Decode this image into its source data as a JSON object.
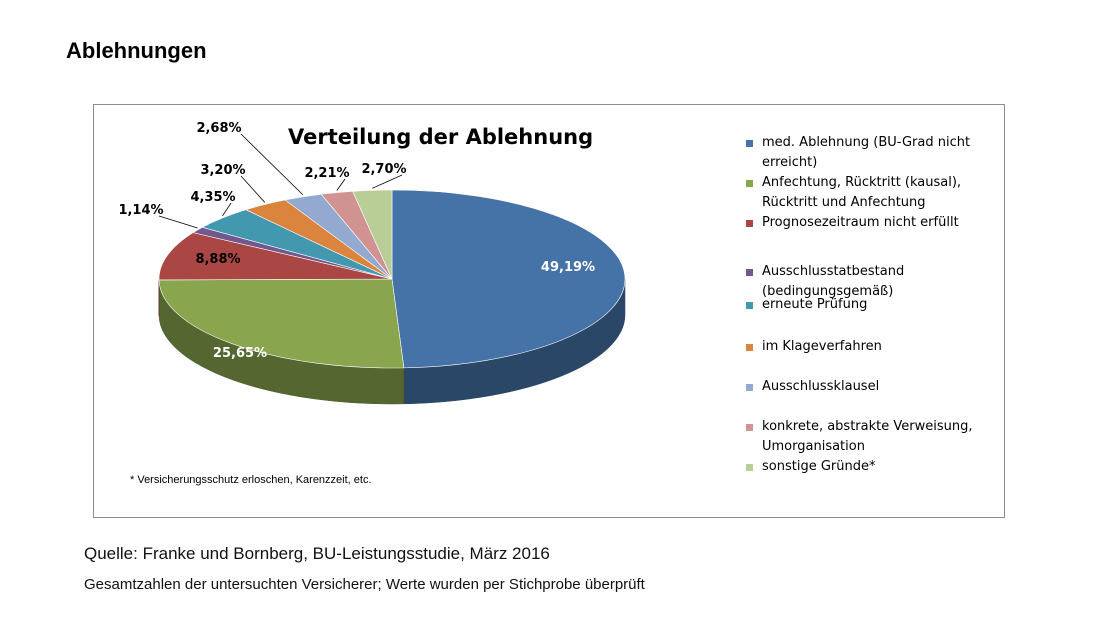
{
  "page": {
    "heading": "Ablehnungen",
    "source": "Quelle: Franke und Bornberg, BU-Leistungsstudie, März 2016",
    "note": "Gesamtzahlen der untersuchten Versicherer; Werte wurden per Stichprobe überprüft"
  },
  "chart_data": {
    "type": "pie",
    "title": "Verteilung der Ablehnung",
    "footnote": "* Versicherungsschutz erloschen, Karenzzeit, etc.",
    "legend_position": "right",
    "three_d": true,
    "slices": [
      {
        "name": "med. Ablehnung (BU-Grad nicht erreicht)",
        "value": 49.19,
        "label": "49,19%",
        "color": "#4572A7"
      },
      {
        "name": "Anfechtung, Rücktritt (kausal), Rücktritt und Anfechtung",
        "value": 25.65,
        "label": "25,65%",
        "color": "#89A54E"
      },
      {
        "name": "Prognosezeitraum nicht erfüllt",
        "value": 8.88,
        "label": "8,88%",
        "color": "#AA4643"
      },
      {
        "name": "Ausschlusstatbestand (bedingungsgemäß)",
        "value": 1.14,
        "label": "1,14%",
        "color": "#71588F"
      },
      {
        "name": "erneute Prüfung",
        "value": 4.35,
        "label": "4,35%",
        "color": "#4198AF"
      },
      {
        "name": "im Klageverfahren",
        "value": 3.2,
        "label": "3,20%",
        "color": "#DB843D"
      },
      {
        "name": "Ausschlussklausel",
        "value": 2.68,
        "label": "2,68%",
        "color": "#93A9CF"
      },
      {
        "name": "konkrete, abstrakte Verweisung, Umorganisation",
        "value": 2.21,
        "label": "2,21%",
        "color": "#D19392"
      },
      {
        "name": "sonstige Gründe*",
        "value": 2.7,
        "label": "2,70%",
        "color": "#B9CD96"
      }
    ]
  }
}
